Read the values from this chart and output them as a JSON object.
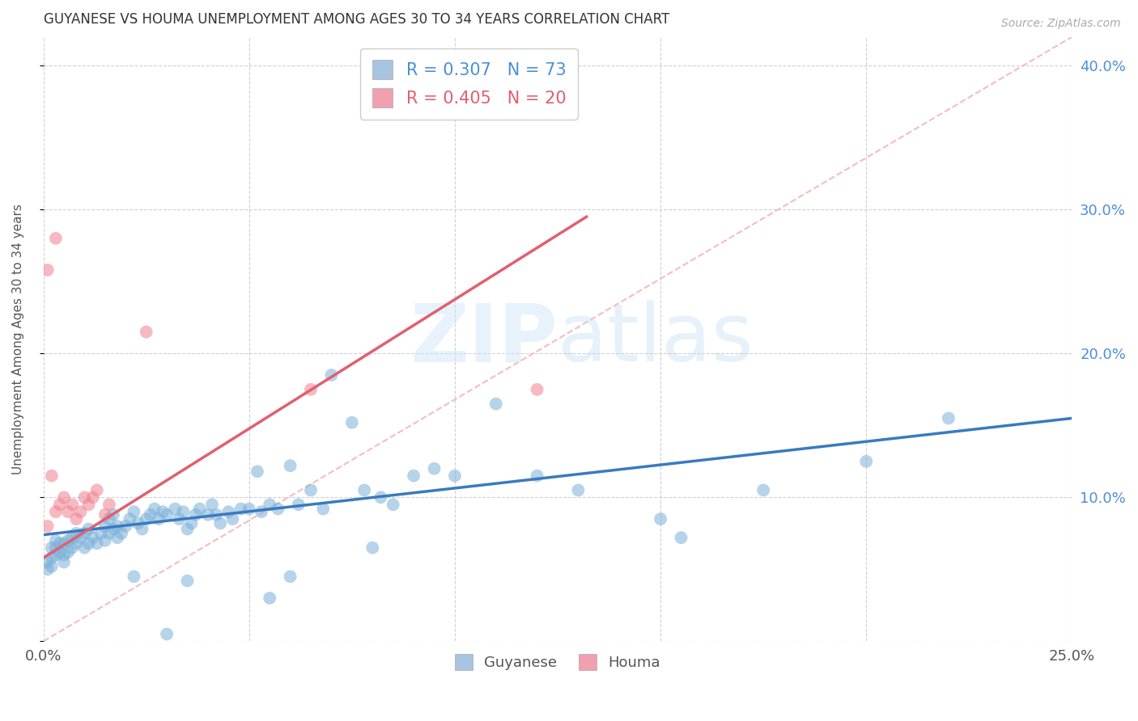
{
  "title": "GUYANESE VS HOUMA UNEMPLOYMENT AMONG AGES 30 TO 34 YEARS CORRELATION CHART",
  "source": "Source: ZipAtlas.com",
  "ylabel": "Unemployment Among Ages 30 to 34 years",
  "xlim": [
    0.0,
    0.25
  ],
  "ylim": [
    0.0,
    0.42
  ],
  "xticks": [
    0.0,
    0.05,
    0.1,
    0.15,
    0.2,
    0.25
  ],
  "yticks": [
    0.0,
    0.1,
    0.2,
    0.3,
    0.4
  ],
  "guyanese_color": "#7ab0d8",
  "houma_color": "#f08090",
  "guyanese_legend_color": "#a8c4e0",
  "houma_legend_color": "#f0a0b0",
  "trend_blue_color": "#3a7abf",
  "trend_pink_color": "#e06070",
  "diagonal_color": "#f0b8b8",
  "trend_line_blue": {
    "x0": 0.0,
    "y0": 0.074,
    "x1": 0.25,
    "y1": 0.155
  },
  "trend_line_pink": {
    "x0": 0.0,
    "y0": 0.058,
    "x1": 0.132,
    "y1": 0.295
  },
  "diagonal_line": {
    "x0": 0.0,
    "y0": 0.0,
    "x1": 0.25,
    "y1": 0.42
  },
  "guyanese_points": [
    [
      0.001,
      0.05
    ],
    [
      0.001,
      0.055
    ],
    [
      0.002,
      0.052
    ],
    [
      0.002,
      0.058
    ],
    [
      0.002,
      0.065
    ],
    [
      0.003,
      0.06
    ],
    [
      0.003,
      0.065
    ],
    [
      0.003,
      0.07
    ],
    [
      0.004,
      0.062
    ],
    [
      0.004,
      0.068
    ],
    [
      0.005,
      0.055
    ],
    [
      0.005,
      0.06
    ],
    [
      0.005,
      0.068
    ],
    [
      0.006,
      0.062
    ],
    [
      0.006,
      0.07
    ],
    [
      0.007,
      0.065
    ],
    [
      0.007,
      0.072
    ],
    [
      0.008,
      0.068
    ],
    [
      0.008,
      0.075
    ],
    [
      0.009,
      0.072
    ],
    [
      0.01,
      0.065
    ],
    [
      0.01,
      0.075
    ],
    [
      0.011,
      0.068
    ],
    [
      0.011,
      0.078
    ],
    [
      0.012,
      0.072
    ],
    [
      0.013,
      0.068
    ],
    [
      0.014,
      0.075
    ],
    [
      0.015,
      0.07
    ],
    [
      0.015,
      0.08
    ],
    [
      0.016,
      0.075
    ],
    [
      0.016,
      0.085
    ],
    [
      0.017,
      0.078
    ],
    [
      0.017,
      0.088
    ],
    [
      0.018,
      0.072
    ],
    [
      0.018,
      0.08
    ],
    [
      0.019,
      0.075
    ],
    [
      0.02,
      0.08
    ],
    [
      0.021,
      0.085
    ],
    [
      0.022,
      0.09
    ],
    [
      0.023,
      0.082
    ],
    [
      0.024,
      0.078
    ],
    [
      0.025,
      0.085
    ],
    [
      0.026,
      0.088
    ],
    [
      0.027,
      0.092
    ],
    [
      0.028,
      0.085
    ],
    [
      0.029,
      0.09
    ],
    [
      0.03,
      0.088
    ],
    [
      0.032,
      0.092
    ],
    [
      0.033,
      0.085
    ],
    [
      0.034,
      0.09
    ],
    [
      0.035,
      0.078
    ],
    [
      0.036,
      0.082
    ],
    [
      0.037,
      0.088
    ],
    [
      0.038,
      0.092
    ],
    [
      0.04,
      0.088
    ],
    [
      0.041,
      0.095
    ],
    [
      0.042,
      0.088
    ],
    [
      0.043,
      0.082
    ],
    [
      0.045,
      0.09
    ],
    [
      0.046,
      0.085
    ],
    [
      0.048,
      0.092
    ],
    [
      0.05,
      0.092
    ],
    [
      0.052,
      0.118
    ],
    [
      0.053,
      0.09
    ],
    [
      0.055,
      0.095
    ],
    [
      0.057,
      0.092
    ],
    [
      0.06,
      0.122
    ],
    [
      0.062,
      0.095
    ],
    [
      0.065,
      0.105
    ],
    [
      0.068,
      0.092
    ],
    [
      0.07,
      0.185
    ],
    [
      0.075,
      0.152
    ],
    [
      0.078,
      0.105
    ],
    [
      0.082,
      0.1
    ],
    [
      0.085,
      0.095
    ],
    [
      0.09,
      0.115
    ],
    [
      0.095,
      0.12
    ],
    [
      0.1,
      0.115
    ],
    [
      0.11,
      0.165
    ],
    [
      0.12,
      0.115
    ],
    [
      0.13,
      0.105
    ],
    [
      0.15,
      0.085
    ],
    [
      0.175,
      0.105
    ],
    [
      0.155,
      0.072
    ],
    [
      0.2,
      0.125
    ],
    [
      0.22,
      0.155
    ],
    [
      0.022,
      0.045
    ],
    [
      0.035,
      0.042
    ],
    [
      0.055,
      0.03
    ],
    [
      0.06,
      0.045
    ],
    [
      0.03,
      0.005
    ],
    [
      0.08,
      0.065
    ]
  ],
  "houma_points": [
    [
      0.001,
      0.08
    ],
    [
      0.002,
      0.115
    ],
    [
      0.003,
      0.09
    ],
    [
      0.004,
      0.095
    ],
    [
      0.005,
      0.1
    ],
    [
      0.006,
      0.09
    ],
    [
      0.007,
      0.095
    ],
    [
      0.008,
      0.085
    ],
    [
      0.009,
      0.09
    ],
    [
      0.01,
      0.1
    ],
    [
      0.011,
      0.095
    ],
    [
      0.012,
      0.1
    ],
    [
      0.013,
      0.105
    ],
    [
      0.015,
      0.088
    ],
    [
      0.016,
      0.095
    ],
    [
      0.003,
      0.28
    ],
    [
      0.001,
      0.258
    ],
    [
      0.025,
      0.215
    ],
    [
      0.065,
      0.175
    ],
    [
      0.12,
      0.175
    ]
  ]
}
